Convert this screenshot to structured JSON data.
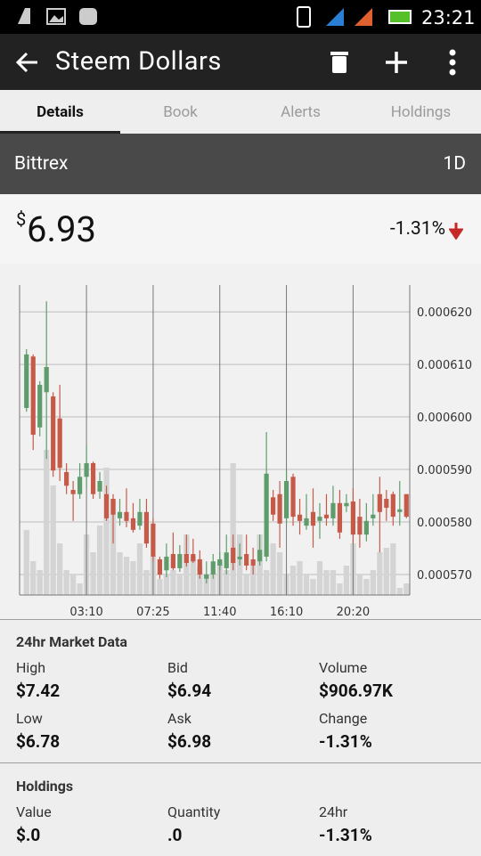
{
  "status_bar": {
    "time": "23:21"
  },
  "app_bar": {
    "title": "Steem Dollars"
  },
  "tabs": [
    "Details",
    "Book",
    "Alerts",
    "Holdings"
  ],
  "exchange": {
    "name": "Bittrex",
    "range": "1D"
  },
  "price": {
    "currency": "$",
    "value": "6.93",
    "change": "-1.31%"
  },
  "chart_data": {
    "type": "candlestick",
    "categories": [
      null,
      null,
      null,
      null,
      null,
      null,
      null,
      null,
      null,
      "03:10",
      null,
      null,
      null,
      null,
      null,
      null,
      null,
      null,
      null,
      "07:25",
      null,
      null,
      null,
      null,
      null,
      null,
      null,
      null,
      null,
      "11:40",
      null,
      null,
      null,
      null,
      null,
      null,
      null,
      null,
      null,
      "16:10",
      null,
      null,
      null,
      null,
      null,
      null,
      null,
      null,
      null,
      "20:20",
      null,
      null,
      null,
      null,
      null,
      null,
      null,
      null
    ],
    "open": [
      0.0006017,
      0.0006115,
      0.000598,
      0.0006047,
      0.0006039,
      0.0005997,
      0.0005895,
      0.0005861,
      0.0005853,
      0.0005886,
      0.0005912,
      0.0005858,
      0.0005853,
      0.0005844,
      0.0005807,
      0.0005819,
      0.0005807,
      0.0005793,
      0.0005819,
      0.0005797,
      0.0005729,
      0.0005708,
      0.0005739,
      0.0005712,
      0.0005739,
      0.0005739,
      0.0005729,
      0.0005692,
      0.00057,
      0.0005717,
      0.0005712,
      0.0005751,
      0.0005729,
      0.0005739,
      0.0005729,
      0.0005725,
      0.0005734,
      0.0005847,
      0.0005853,
      0.0005807,
      0.0005886,
      0.0005814,
      0.0005793,
      0.0005819,
      0.0005802,
      0.0005814,
      0.0005807,
      0.0005836,
      0.000583,
      0.0005839,
      0.000581,
      0.0005776,
      0.0005807,
      0.0005853,
      0.0005844,
      0.0005853,
      0.0005819,
      0.0005853
    ],
    "high": [
      0.0006129,
      0.0006119,
      0.0006068,
      0.000622,
      0.0006047,
      0.0006061,
      0.0005912,
      0.0005878,
      0.0005912,
      0.0005946,
      0.0005915,
      0.0005895,
      0.0005869,
      0.0005853,
      0.0005844,
      0.0005864,
      0.0005836,
      0.0005844,
      0.0005844,
      0.0005807,
      0.0005734,
      0.0005759,
      0.000578,
      0.0005756,
      0.0005776,
      0.0005768,
      0.0005746,
      0.0005725,
      0.0005739,
      0.0005742,
      0.0005776,
      0.0005776,
      0.0005759,
      0.0005776,
      0.0005751,
      0.0005776,
      0.0005971,
      0.0005861,
      0.0005878,
      0.0005898,
      0.0005892,
      0.0005844,
      0.0005853,
      0.0005864,
      0.0005836,
      0.0005853,
      0.0005869,
      0.0005861,
      0.0005853,
      0.0005864,
      0.0005844,
      0.0005836,
      0.0005853,
      0.0005886,
      0.0005861,
      0.0005858,
      0.0005878,
      0.0005853
    ],
    "low": [
      0.000601,
      0.0005937,
      0.0005963,
      0.000592,
      0.0005886,
      0.0005878,
      0.0005853,
      0.0005802,
      0.0005844,
      0.0005864,
      0.0005844,
      0.0005844,
      0.0005802,
      0.0005759,
      0.0005793,
      0.000579,
      0.000578,
      0.0005785,
      0.0005751,
      0.0005725,
      0.0005692,
      0.0005695,
      0.0005708,
      0.0005705,
      0.0005715,
      0.0005722,
      0.0005692,
      0.0005683,
      0.0005692,
      0.0005708,
      0.00057,
      0.0005708,
      0.0005717,
      0.0005708,
      0.00057,
      0.0005717,
      0.0005725,
      0.0005802,
      0.0005751,
      0.0005797,
      0.0005793,
      0.0005776,
      0.0005785,
      0.0005751,
      0.0005768,
      0.0005793,
      0.0005793,
      0.0005768,
      0.0005819,
      0.0005759,
      0.0005751,
      0.0005763,
      0.0005793,
      0.0005742,
      0.0005802,
      0.0005793,
      0.0005793,
      0.0005807
    ],
    "close": [
      0.0006119,
      0.0005966,
      0.0006061,
      0.0006095,
      0.0005898,
      0.0005903,
      0.0005869,
      0.0005853,
      0.0005886,
      0.0005912,
      0.0005853,
      0.0005878,
      0.0005807,
      0.0005814,
      0.0005819,
      0.0005802,
      0.0005785,
      0.0005819,
      0.0005759,
      0.0005734,
      0.00057,
      0.0005734,
      0.0005712,
      0.0005739,
      0.0005722,
      0.0005725,
      0.00057,
      0.00057,
      0.0005725,
      0.0005729,
      0.0005742,
      0.0005722,
      0.0005734,
      0.0005717,
      0.0005717,
      0.0005747,
      0.0005892,
      0.0005814,
      0.0005797,
      0.0005878,
      0.000581,
      0.0005802,
      0.0005807,
      0.0005793,
      0.000581,
      0.0005807,
      0.0005836,
      0.000578,
      0.0005836,
      0.0005776,
      0.0005776,
      0.0005802,
      0.0005814,
      0.0005819,
      0.0005827,
      0.000581,
      0.0005824,
      0.000581
    ],
    "volumes": [
      73,
      38,
      28,
      163,
      123,
      58,
      28,
      23,
      13,
      68,
      48,
      78,
      143,
      108,
      48,
      43,
      38,
      58,
      28,
      43,
      18,
      23,
      28,
      23,
      68,
      43,
      33,
      23,
      23,
      38,
      28,
      148,
      68,
      23,
      33,
      68,
      28,
      58,
      48,
      23,
      33,
      38,
      23,
      18,
      38,
      28,
      28,
      13,
      33,
      58,
      23,
      18,
      28,
      48,
      53,
      58,
      8,
      13
    ],
    "up_color": "#5f9c6c",
    "down_color": "#c65a49",
    "volume_color": "#d4d4d4",
    "ylim": [
      0.0005661,
      0.0006251
    ],
    "yticks": [
      {
        "value": 0.00057,
        "label": "0.000570"
      },
      {
        "value": 0.00058,
        "label": "0.000580"
      },
      {
        "value": 0.00059,
        "label": "0.000590"
      },
      {
        "value": 0.0006,
        "label": "0.000600"
      },
      {
        "value": 0.00061,
        "label": "0.000610"
      },
      {
        "value": 0.00062,
        "label": "0.000620"
      }
    ],
    "grid": true
  },
  "market_data": {
    "title": "24hr Market Data",
    "items": [
      {
        "label": "High",
        "value": "$7.42"
      },
      {
        "label": "Bid",
        "value": "$6.94"
      },
      {
        "label": "Volume",
        "value": "$906.97K"
      },
      {
        "label": "Low",
        "value": "$6.78"
      },
      {
        "label": "Ask",
        "value": "$6.98"
      },
      {
        "label": "Change",
        "value": "-1.31%"
      }
    ]
  },
  "holdings": {
    "title": "Holdings",
    "items": [
      {
        "label": "Value",
        "value": "$.0"
      },
      {
        "label": "Quantity",
        "value": ".0"
      },
      {
        "label": "24hr",
        "value": "-1.31%"
      }
    ]
  }
}
